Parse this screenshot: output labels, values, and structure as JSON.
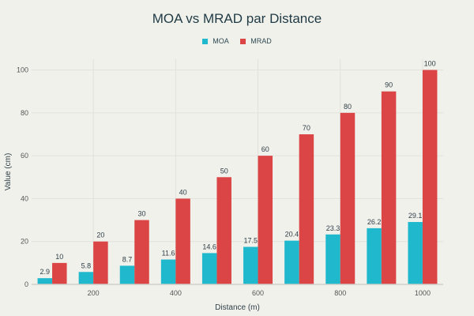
{
  "chart_data": {
    "type": "bar",
    "title": "MOA vs MRAD par Distance",
    "xlabel": "Distance (m)",
    "ylabel": "Value (cm)",
    "categories": [
      100,
      200,
      300,
      400,
      500,
      600,
      700,
      800,
      900,
      1000
    ],
    "x_ticks": [
      200,
      400,
      600,
      800,
      1000
    ],
    "y_ticks": [
      0,
      20,
      40,
      60,
      80,
      100
    ],
    "xlim": [
      50,
      1050
    ],
    "ylim": [
      0,
      105
    ],
    "grid": true,
    "legend_position": "top-center",
    "series": [
      {
        "name": "MOA",
        "color": "#1fb8cd",
        "values": [
          2.9,
          5.8,
          8.7,
          11.6,
          14.6,
          17.5,
          20.4,
          23.3,
          26.2,
          29.1
        ]
      },
      {
        "name": "MRAD",
        "color": "#db4545",
        "values": [
          10,
          20,
          30,
          40,
          50,
          60,
          70,
          80,
          90,
          100
        ]
      }
    ]
  }
}
